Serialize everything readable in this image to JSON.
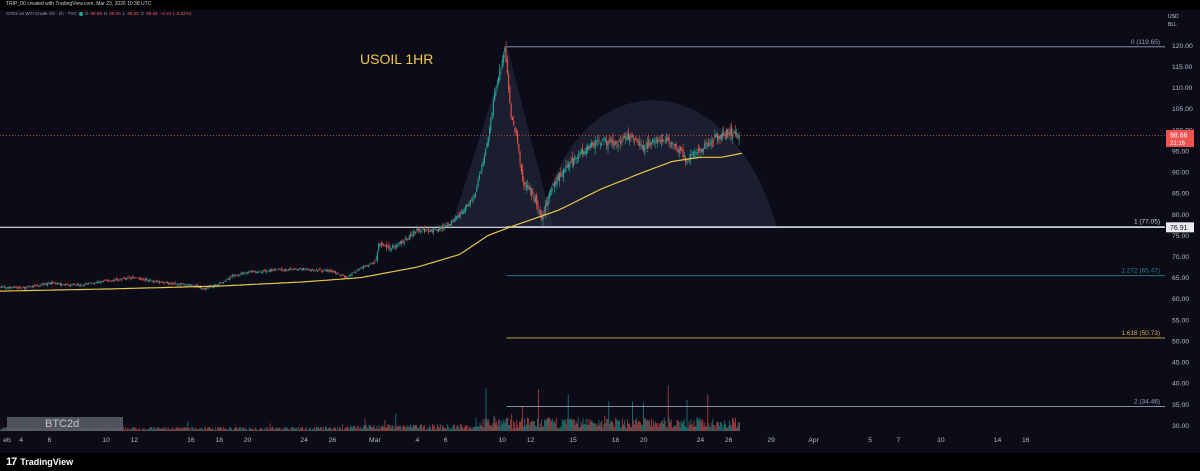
{
  "header": {
    "creator_line": "TRIP_00 created with TradingView.com, Mar 23, 2026 10:38 UTC",
    "symbol_line": "CFDs on WTI Crude Oil · 1h · TVC",
    "ohlc": [
      {
        "label": "O",
        "value": "98.89"
      },
      {
        "label": "H",
        "value": "99.45"
      },
      {
        "label": "L",
        "value": "98.55"
      },
      {
        "label": "C",
        "value": "98.66"
      }
    ],
    "change": "−0.22 (−0.22%)"
  },
  "price_scale": {
    "currency": "USD",
    "unit": "BLL"
  },
  "watermark": "BTC2d",
  "footer": {
    "brand_mark": "17",
    "brand_name": "TradingView"
  },
  "colors": {
    "bull": "#26a69a",
    "bear": "#ef5350",
    "ma": "#e8c547",
    "fib_1272": "#2a7e8f",
    "fib_1618": "#d6b24a",
    "title": "#f2c94c"
  },
  "chart_data": {
    "type": "candlestick",
    "title": "USOIL 1HR",
    "instrument": "CFDs on WTI Crude Oil",
    "timeframe": "1h",
    "ylim": [
      27.5,
      126
    ],
    "y_ticks": [
      "120.00",
      "115.00",
      "110.00",
      "105.00",
      "100.00",
      "95.00",
      "90.00",
      "85.00",
      "80.00",
      "75.00",
      "70.00",
      "65.00",
      "60.00",
      "55.00",
      "50.00",
      "45.00",
      "40.00",
      "35.00",
      "30.00"
    ],
    "x_ticks": [
      {
        "label": "eb",
        "day": 13
      },
      {
        "label": "4",
        "day": 14
      },
      {
        "label": "6",
        "day": 16
      },
      {
        "label": "10",
        "day": 20
      },
      {
        "label": "12",
        "day": 22
      },
      {
        "label": "16",
        "day": 26
      },
      {
        "label": "18",
        "day": 28
      },
      {
        "label": "20",
        "day": 30
      },
      {
        "label": "24",
        "day": 34
      },
      {
        "label": "26",
        "day": 36
      },
      {
        "label": "Mar",
        "day": 39
      },
      {
        "label": "4",
        "day": 42
      },
      {
        "label": "6",
        "day": 44
      },
      {
        "label": "10",
        "day": 48
      },
      {
        "label": "12",
        "day": 50
      },
      {
        "label": "15",
        "day": 53
      },
      {
        "label": "18",
        "day": 56
      },
      {
        "label": "20",
        "day": 58
      },
      {
        "label": "24",
        "day": 62
      },
      {
        "label": "26",
        "day": 64
      },
      {
        "label": "29",
        "day": 67
      },
      {
        "label": "Apr",
        "day": 70
      },
      {
        "label": "5",
        "day": 74
      },
      {
        "label": "7",
        "day": 76
      },
      {
        "label": "10",
        "day": 79
      },
      {
        "label": "14",
        "day": 83
      },
      {
        "label": "16",
        "day": 85
      }
    ],
    "last_price": {
      "value": 98.66,
      "label": "98.66",
      "countdown": "21:16"
    },
    "horizontal_line": {
      "value": 76.91,
      "label": "76.91"
    },
    "fib_levels": [
      {
        "ratio": "0",
        "price": 119.65,
        "label": "0 (119.65)",
        "color": "#9aa0ad"
      },
      {
        "ratio": "1",
        "price": 77.05,
        "label": "1 (77.05)",
        "color": "#c9ccd6"
      },
      {
        "ratio": "1.272",
        "price": 65.47,
        "label": "1.272 (65.47)",
        "color": "#2a7e8f"
      },
      {
        "ratio": "1.618",
        "price": 50.73,
        "label": "1.618 (50.73)",
        "color": "#d6b24a"
      },
      {
        "ratio": "2",
        "price": 34.46,
        "label": "2 (34.46)",
        "color": "#9aa0ad"
      }
    ],
    "price_path": [
      {
        "day": 12.4,
        "price": 62.8
      },
      {
        "day": 14,
        "price": 62.5
      },
      {
        "day": 16,
        "price": 63.6
      },
      {
        "day": 18,
        "price": 63.2
      },
      {
        "day": 20,
        "price": 64.2
      },
      {
        "day": 22,
        "price": 65.0
      },
      {
        "day": 24,
        "price": 63.8
      },
      {
        "day": 26,
        "price": 63.2
      },
      {
        "day": 27,
        "price": 62.4
      },
      {
        "day": 28,
        "price": 63.5
      },
      {
        "day": 29,
        "price": 65.5
      },
      {
        "day": 30,
        "price": 66.3
      },
      {
        "day": 32,
        "price": 66.8
      },
      {
        "day": 34,
        "price": 67.0
      },
      {
        "day": 36,
        "price": 66.5
      },
      {
        "day": 37,
        "price": 65.0
      },
      {
        "day": 38,
        "price": 67.3
      },
      {
        "day": 39,
        "price": 68.5
      },
      {
        "day": 39.3,
        "price": 73.0
      },
      {
        "day": 40,
        "price": 72.0
      },
      {
        "day": 41,
        "price": 73.5
      },
      {
        "day": 42,
        "price": 76.5
      },
      {
        "day": 43,
        "price": 76.0
      },
      {
        "day": 44,
        "price": 77.0
      },
      {
        "day": 45,
        "price": 80.0
      },
      {
        "day": 46,
        "price": 84.0
      },
      {
        "day": 46.6,
        "price": 92.0
      },
      {
        "day": 47,
        "price": 98.0
      },
      {
        "day": 47.6,
        "price": 111.0
      },
      {
        "day": 48.2,
        "price": 119.0
      },
      {
        "day": 48.6,
        "price": 104.0
      },
      {
        "day": 49,
        "price": 99.0
      },
      {
        "day": 49.5,
        "price": 87.0
      },
      {
        "day": 50,
        "price": 86.0
      },
      {
        "day": 50.8,
        "price": 79.0
      },
      {
        "day": 51.5,
        "price": 86.0
      },
      {
        "day": 52,
        "price": 89.0
      },
      {
        "day": 53,
        "price": 93.0
      },
      {
        "day": 54,
        "price": 96.0
      },
      {
        "day": 55,
        "price": 97.5
      },
      {
        "day": 56,
        "price": 96.5
      },
      {
        "day": 57,
        "price": 98.5
      },
      {
        "day": 58,
        "price": 95.5
      },
      {
        "day": 59,
        "price": 98.0
      },
      {
        "day": 60,
        "price": 97.0
      },
      {
        "day": 61,
        "price": 93.0
      },
      {
        "day": 62,
        "price": 95.0
      },
      {
        "day": 63,
        "price": 98.0
      },
      {
        "day": 64,
        "price": 99.5
      },
      {
        "day": 64.8,
        "price": 98.66
      }
    ],
    "moving_average": [
      {
        "day": 12.4,
        "price": 61.8
      },
      {
        "day": 20,
        "price": 62.3
      },
      {
        "day": 28,
        "price": 63.0
      },
      {
        "day": 34,
        "price": 64.0
      },
      {
        "day": 38,
        "price": 65.0
      },
      {
        "day": 42,
        "price": 67.5
      },
      {
        "day": 45,
        "price": 70.5
      },
      {
        "day": 47,
        "price": 75.0
      },
      {
        "day": 49,
        "price": 77.5
      },
      {
        "day": 52,
        "price": 81.0
      },
      {
        "day": 55,
        "price": 86.0
      },
      {
        "day": 58,
        "price": 90.0
      },
      {
        "day": 60,
        "price": 92.5
      },
      {
        "day": 62,
        "price": 93.5
      },
      {
        "day": 63.5,
        "price": 93.5
      },
      {
        "day": 65,
        "price": 94.5
      }
    ],
    "volume_profile": "higher activity after Mar 6"
  }
}
